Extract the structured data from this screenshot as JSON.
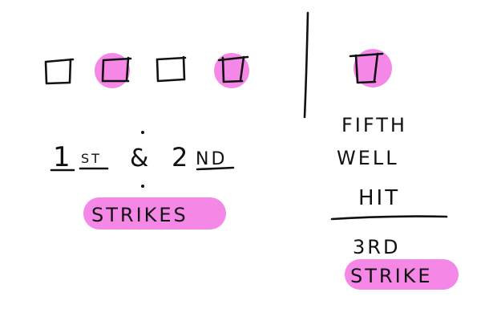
{
  "colors": {
    "ink": "#111111",
    "highlight": "#f587e6"
  },
  "wells": {
    "left_row": [
      {
        "highlighted": false
      },
      {
        "highlighted": true
      },
      {
        "highlighted": false
      },
      {
        "highlighted": true
      }
    ],
    "right": {
      "highlighted": true
    }
  },
  "labels": {
    "first_num": "1",
    "first_suffix": "ST",
    "ampersand": "&",
    "second_num": "2",
    "second_suffix": "ND",
    "strikes": "STRIKES",
    "fifth": "FIFTH",
    "well": "WELL",
    "hit": "HIT",
    "third": "3RD",
    "strike": "STRIKE"
  }
}
